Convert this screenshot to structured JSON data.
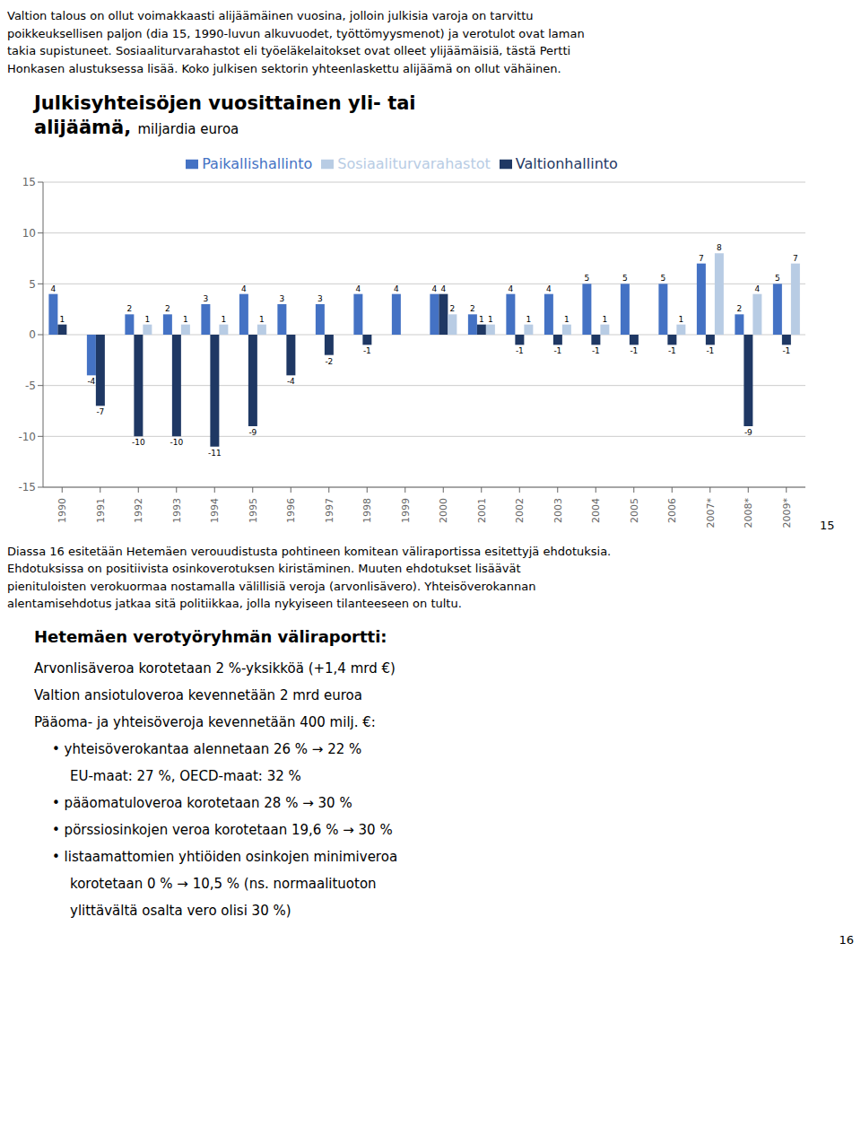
{
  "chart_data": {
    "type": "bar",
    "title": "Julkisyhteisöjen vuosittainen yli- tai alijäämä,",
    "subtitle": "miljardia euroa",
    "categories": [
      "1990",
      "1991",
      "1992",
      "1993",
      "1994",
      "1995",
      "1996",
      "1997",
      "1998",
      "1999",
      "2000",
      "2001",
      "2002",
      "2003",
      "2004",
      "2005",
      "2006",
      "2007*",
      "2008*",
      "2009*"
    ],
    "series": [
      {
        "name": "Paikallishallinto",
        "color": "#4472C4",
        "values": [
          4,
          -4,
          2,
          2,
          3,
          4,
          3,
          3,
          4,
          4,
          4,
          2,
          4,
          4,
          5,
          5,
          5,
          7,
          2,
          5
        ]
      },
      {
        "name": "Valtionhallinto",
        "color": "#1F3864",
        "values": [
          1,
          -7,
          -10,
          -10,
          -11,
          -9,
          -4,
          -2,
          -1,
          0,
          4,
          1,
          -1,
          -1,
          -1,
          -1,
          -1,
          -1,
          -9,
          -1
        ]
      },
      {
        "name": "Sosiaaliturvarahastot",
        "color": "#B8CCE4",
        "values": [
          0,
          0,
          1,
          1,
          1,
          1,
          0,
          0,
          0,
          0,
          2,
          1,
          1,
          1,
          1,
          0,
          1,
          8,
          4,
          7
        ]
      }
    ],
    "ylim": [
      -15,
      15
    ],
    "yticks": [
      -15,
      -10,
      -5,
      0,
      5,
      10,
      15
    ],
    "grid": true,
    "legend": "top",
    "data_labels": true,
    "annotations": [
      "Valtion talous on ollut voimakkaasti alijäämäinen vuosina, jolloin julkisia varoja on tarvittu\npoikkeuksellisen paljon (dia 15, 1990-luvun alkuvuodet, työttömyysmenot) ja verotulot ovat laman\ntakia supistuneet. Sosiaaliturvarahastot eli työeläkelaitokset ovat olleet ylijäämäisiä, tästä Pertti\nHonkasen alustuksessa lisää. Koko julkisen sektorin yhteenlaskettu alijäämä on ollut vähäinen.",
      "15",
      "Diassa 16 esitetään Hetemäen verouudistusta pohtineen komitean väliraportissa esitettyjä ehdotuksia.\nEhdotuksissa on positiivista osinkoverotuksen kiristäminen. Muuten ehdotukset lisäävät\npienituloisten verokuormaa nostamalla välillisiä veroja (arvonlisävero). Yhteisöverokannan\nalentamisehdotus jatkaa sitä politiikkaa, jolla nykyiseen tilanteeseen on tultu.",
      "Hetemäen verotyöryhmän väliraportti:",
      "Arvonlisäveroa korotetaan 2 %-yksikköä (+1,4 mrd €)",
      "Valtion ansiotuloveroa kevennetään 2 mrd euroa",
      "Pääoma- ja yhteisöveroja kevennetään 400 milj. €:",
      "• yhteisöverokantaa alennetaan 26 % → 22 %",
      "EU-maat: 27 %, OECD-maat: 32 %",
      "• pääomatuloveroa korotetaan 28 % → 30 %",
      "• pörssiosinkojen veroa korotetaan 19,6 % → 30 %",
      "• listaamattomien yhtiöiden osinkojen minimiveroa",
      "korotetaan 0 % → 10,5 % (ns. normaalituoton",
      "ylittävältä osalta vero olisi 30 %)",
      "16"
    ]
  }
}
